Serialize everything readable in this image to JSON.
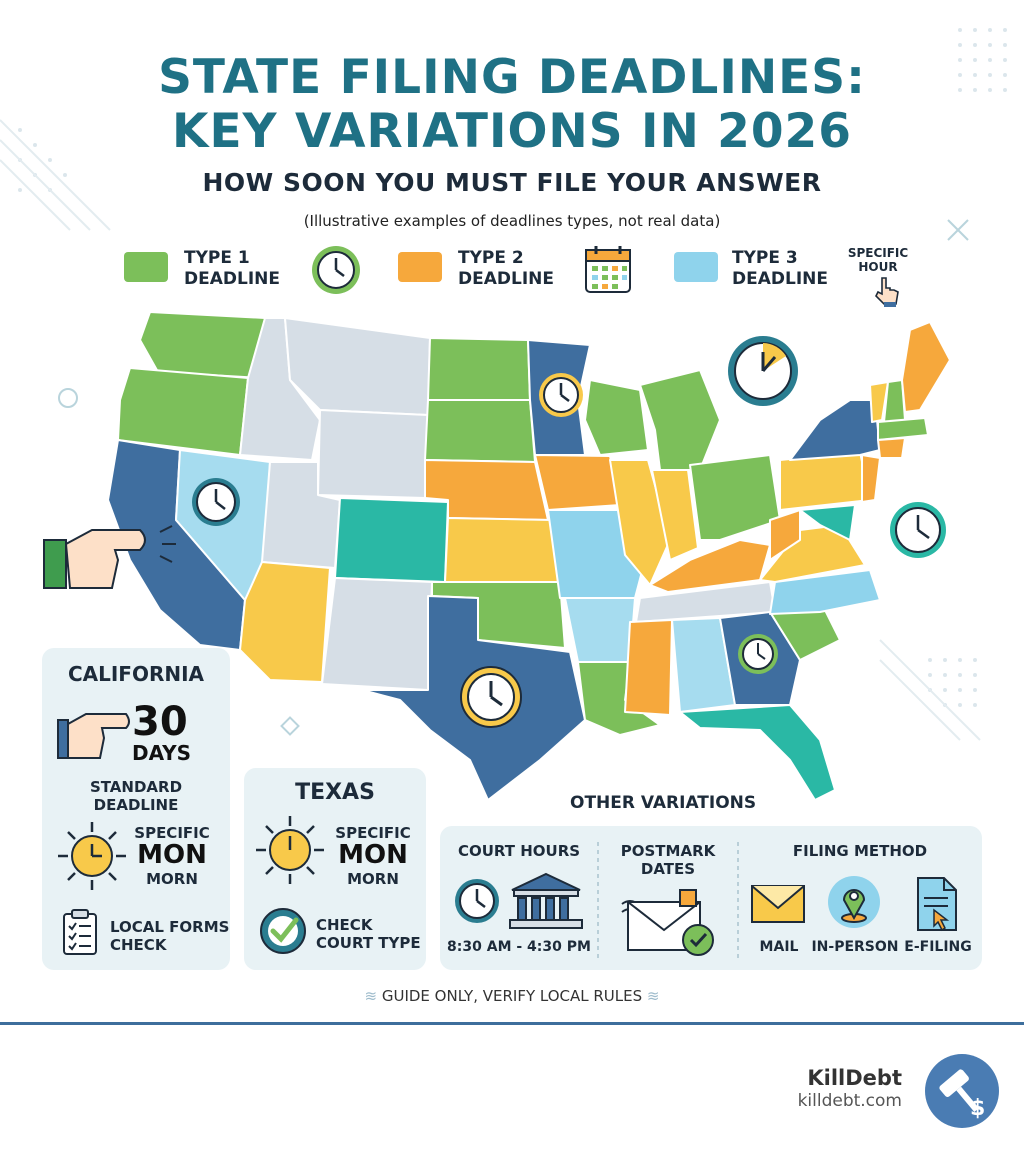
{
  "header": {
    "title_line1": "STATE FILING DEADLINES:",
    "title_line2": "KEY VARIATIONS IN 2026",
    "subtitle": "HOW SOON YOU MUST FILE YOUR ANSWER",
    "note": "(Illustrative examples of deadlines types, not real data)"
  },
  "legend": [
    {
      "line1": "TYPE 1",
      "line2": "DEADLINE",
      "color": "#7cbf5a",
      "icon": "clock-icon"
    },
    {
      "line1": "TYPE 2",
      "line2": "DEADLINE",
      "color": "#f6a83c",
      "icon": "calendar-icon"
    },
    {
      "line1": "TYPE 3",
      "line2": "DEADLINE",
      "color": "#8fd3ec",
      "icon": "pointer-hand-icon"
    }
  ],
  "legend_extra": {
    "line1": "SPECIFIC",
    "line2": "HOUR"
  },
  "colors": {
    "title": "#1f7185",
    "type1": "#7cbf5a",
    "type2": "#f6a83c",
    "type3": "#8fd3ec",
    "navy": "#3f6e9f",
    "teal": "#2ab8a5",
    "gray": "#d6dee6",
    "card_bg": "#e8f2f5"
  },
  "california": {
    "title": "CALIFORNIA",
    "number": "30",
    "unit": "DAYS",
    "deadline_line1": "STANDARD",
    "deadline_line2": "DEADLINE",
    "specific": "SPECIFIC",
    "mon": "MON",
    "morn": "MORN",
    "forms_line1": "LOCAL FORMS",
    "forms_line2": "CHECK"
  },
  "texas": {
    "title": "TEXAS",
    "specific": "SPECIFIC",
    "mon": "MON",
    "morn": "MORN",
    "check_line1": "CHECK",
    "check_line2": "COURT TYPE"
  },
  "other": {
    "title": "OTHER VARIATIONS",
    "court_hours": {
      "title": "COURT HOURS",
      "hours": "8:30 AM - 4:30 PM"
    },
    "postmark": {
      "line1": "POSTMARK",
      "line2": "DATES"
    },
    "filing": {
      "title": "FILING METHOD",
      "options": [
        "MAIL",
        "IN-PERSON",
        "E-FILING"
      ]
    }
  },
  "footer": {
    "note": "GUIDE ONLY, VERIFY LOCAL RULES",
    "brand": "KillDebt",
    "url": "killdebt.com"
  }
}
